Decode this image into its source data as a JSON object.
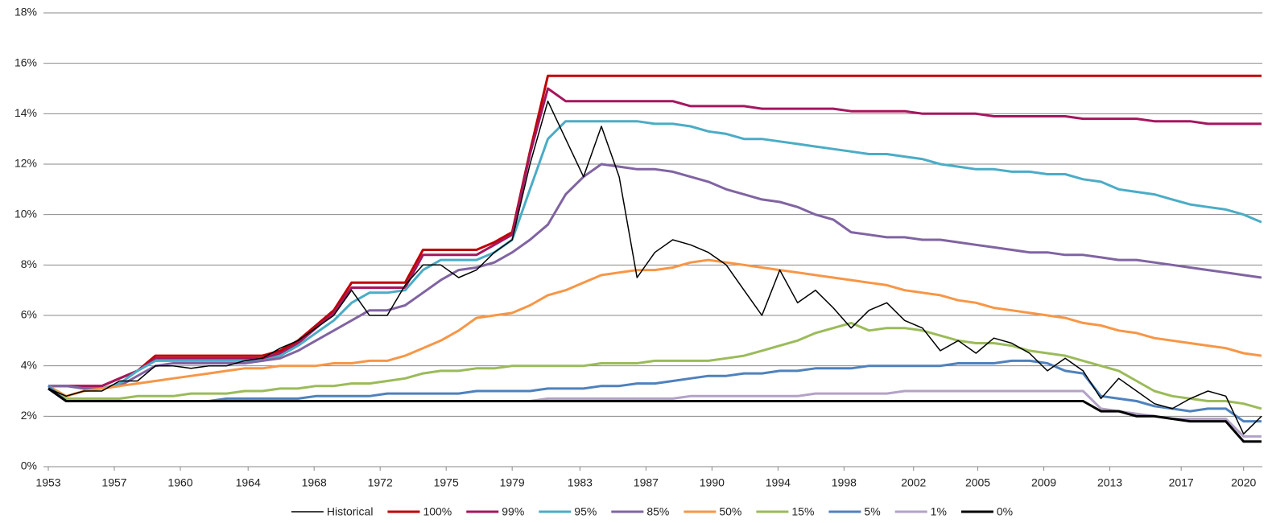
{
  "chart_data": {
    "type": "line",
    "x": [
      1953,
      1954,
      1955,
      1956,
      1957,
      1958,
      1959,
      1960,
      1961,
      1962,
      1963,
      1964,
      1965,
      1966,
      1967,
      1968,
      1969,
      1970,
      1971,
      1972,
      1973,
      1974,
      1975,
      1976,
      1977,
      1978,
      1979,
      1980,
      1981,
      1982,
      1983,
      1984,
      1985,
      1986,
      1987,
      1988,
      1989,
      1990,
      1991,
      1992,
      1993,
      1994,
      1995,
      1996,
      1997,
      1998,
      1999,
      2000,
      2001,
      2002,
      2003,
      2004,
      2005,
      2006,
      2007,
      2008,
      2009,
      2010,
      2011,
      2012,
      2013,
      2014,
      2015,
      2016,
      2017,
      2018,
      2019,
      2020,
      2021
    ],
    "xlim": [
      1953,
      2021.05
    ],
    "xticks": [
      {
        "value": 1953,
        "label": "1953"
      },
      {
        "value": 1956.7,
        "label": "1957"
      },
      {
        "value": 1960.4,
        "label": "1960"
      },
      {
        "value": 1964.2,
        "label": "1964"
      },
      {
        "value": 1967.9,
        "label": "1968"
      },
      {
        "value": 1971.6,
        "label": "1972"
      },
      {
        "value": 1975.3,
        "label": "1975"
      },
      {
        "value": 1979.0,
        "label": "1979"
      },
      {
        "value": 1982.8,
        "label": "1983"
      },
      {
        "value": 1986.5,
        "label": "1987"
      },
      {
        "value": 1990.2,
        "label": "1990"
      },
      {
        "value": 1993.9,
        "label": "1994"
      },
      {
        "value": 1997.6,
        "label": "1998"
      },
      {
        "value": 2001.5,
        "label": "2002"
      },
      {
        "value": 2005.1,
        "label": "2005"
      },
      {
        "value": 2008.8,
        "label": "2009"
      },
      {
        "value": 2012.5,
        "label": "2013"
      },
      {
        "value": 2016.5,
        "label": "2017"
      },
      {
        "value": 2020.0,
        "label": "2020"
      }
    ],
    "ylim": [
      0,
      18
    ],
    "yticks": [
      {
        "value": 0,
        "label": "0%"
      },
      {
        "value": 2,
        "label": "2%"
      },
      {
        "value": 4,
        "label": "4%"
      },
      {
        "value": 6,
        "label": "6%"
      },
      {
        "value": 8,
        "label": "8%"
      },
      {
        "value": 10,
        "label": "10%"
      },
      {
        "value": 12,
        "label": "12%"
      },
      {
        "value": 14,
        "label": "14%"
      },
      {
        "value": 16,
        "label": "16%"
      },
      {
        "value": 18,
        "label": "18%"
      }
    ],
    "grid": true,
    "legend": "bottom",
    "series": [
      {
        "name": "Historical",
        "color": "#000000",
        "line_width": 1.5,
        "values": [
          3.1,
          2.8,
          3.0,
          3.0,
          3.4,
          3.4,
          4.0,
          4.0,
          3.9,
          4.0,
          4.0,
          4.2,
          4.3,
          4.7,
          5.0,
          5.5,
          6.0,
          7.0,
          6.0,
          6.0,
          7.2,
          8.0,
          8.0,
          7.5,
          7.8,
          8.5,
          9.0,
          12.0,
          14.5,
          13.0,
          11.5,
          13.5,
          11.5,
          7.5,
          8.5,
          9.0,
          8.8,
          8.5,
          8.0,
          7.0,
          6.0,
          7.8,
          6.5,
          7.0,
          6.3,
          5.5,
          6.2,
          6.5,
          5.8,
          5.5,
          4.6,
          5.0,
          4.5,
          5.1,
          4.9,
          4.5,
          3.8,
          4.3,
          3.8,
          2.7,
          3.5,
          3.0,
          2.5,
          2.3,
          2.7,
          3.0,
          2.8,
          1.3,
          2.0
        ]
      },
      {
        "name": "100%",
        "color": "#c00000",
        "line_width": 3,
        "values": [
          3.2,
          3.2,
          3.2,
          3.2,
          3.5,
          3.8,
          4.4,
          4.4,
          4.4,
          4.4,
          4.4,
          4.4,
          4.4,
          4.6,
          5.0,
          5.6,
          6.2,
          7.3,
          7.3,
          7.3,
          7.3,
          8.6,
          8.6,
          8.6,
          8.6,
          8.9,
          9.3,
          12.5,
          15.5,
          15.5,
          15.5,
          15.5,
          15.5,
          15.5,
          15.5,
          15.5,
          15.5,
          15.5,
          15.5,
          15.5,
          15.5,
          15.5,
          15.5,
          15.5,
          15.5,
          15.5,
          15.5,
          15.5,
          15.5,
          15.5,
          15.5,
          15.5,
          15.5,
          15.5,
          15.5,
          15.5,
          15.5,
          15.5,
          15.5,
          15.5,
          15.5,
          15.5,
          15.5,
          15.5,
          15.5,
          15.5,
          15.5,
          15.5,
          15.5
        ]
      },
      {
        "name": "99%",
        "color": "#a5165f",
        "line_width": 3,
        "values": [
          3.2,
          3.2,
          3.2,
          3.2,
          3.5,
          3.8,
          4.3,
          4.3,
          4.3,
          4.3,
          4.3,
          4.3,
          4.3,
          4.5,
          4.9,
          5.5,
          6.1,
          7.1,
          7.1,
          7.1,
          7.1,
          8.4,
          8.4,
          8.4,
          8.4,
          8.8,
          9.2,
          12.4,
          15.0,
          14.5,
          14.5,
          14.5,
          14.5,
          14.5,
          14.5,
          14.5,
          14.3,
          14.3,
          14.3,
          14.3,
          14.2,
          14.2,
          14.2,
          14.2,
          14.2,
          14.1,
          14.1,
          14.1,
          14.1,
          14.0,
          14.0,
          14.0,
          14.0,
          13.9,
          13.9,
          13.9,
          13.9,
          13.9,
          13.8,
          13.8,
          13.8,
          13.8,
          13.7,
          13.7,
          13.7,
          13.6,
          13.6,
          13.6,
          13.6
        ]
      },
      {
        "name": "95%",
        "color": "#4bacc6",
        "line_width": 3,
        "values": [
          3.2,
          3.2,
          3.1,
          3.1,
          3.3,
          3.8,
          4.2,
          4.2,
          4.2,
          4.2,
          4.2,
          4.2,
          4.2,
          4.4,
          4.8,
          5.3,
          5.8,
          6.5,
          6.9,
          6.9,
          7.0,
          7.8,
          8.2,
          8.2,
          8.2,
          8.5,
          9.0,
          11.0,
          13.0,
          13.7,
          13.7,
          13.7,
          13.7,
          13.7,
          13.6,
          13.6,
          13.5,
          13.3,
          13.2,
          13.0,
          13.0,
          12.9,
          12.8,
          12.7,
          12.6,
          12.5,
          12.4,
          12.4,
          12.3,
          12.2,
          12.0,
          11.9,
          11.8,
          11.8,
          11.7,
          11.7,
          11.6,
          11.6,
          11.4,
          11.3,
          11.0,
          10.9,
          10.8,
          10.6,
          10.4,
          10.3,
          10.2,
          10.0,
          9.7
        ]
      },
      {
        "name": "85%",
        "color": "#8064a2",
        "line_width": 3,
        "values": [
          3.2,
          3.2,
          3.1,
          3.1,
          3.2,
          3.6,
          4.0,
          4.1,
          4.1,
          4.1,
          4.1,
          4.1,
          4.2,
          4.3,
          4.6,
          5.0,
          5.4,
          5.8,
          6.2,
          6.2,
          6.4,
          6.9,
          7.4,
          7.8,
          7.9,
          8.1,
          8.5,
          9.0,
          9.6,
          10.8,
          11.5,
          12.0,
          11.9,
          11.8,
          11.8,
          11.7,
          11.5,
          11.3,
          11.0,
          10.8,
          10.6,
          10.5,
          10.3,
          10.0,
          9.8,
          9.3,
          9.2,
          9.1,
          9.1,
          9.0,
          9.0,
          8.9,
          8.8,
          8.7,
          8.6,
          8.5,
          8.5,
          8.4,
          8.4,
          8.3,
          8.2,
          8.2,
          8.1,
          8.0,
          7.9,
          7.8,
          7.7,
          7.6,
          7.5
        ]
      },
      {
        "name": "50%",
        "color": "#f79646",
        "line_width": 3,
        "values": [
          3.2,
          2.8,
          3.0,
          3.1,
          3.2,
          3.3,
          3.4,
          3.5,
          3.6,
          3.7,
          3.8,
          3.9,
          3.9,
          4.0,
          4.0,
          4.0,
          4.1,
          4.1,
          4.2,
          4.2,
          4.4,
          4.7,
          5.0,
          5.4,
          5.9,
          6.0,
          6.1,
          6.4,
          6.8,
          7.0,
          7.3,
          7.6,
          7.7,
          7.8,
          7.8,
          7.9,
          8.1,
          8.2,
          8.1,
          8.0,
          7.9,
          7.8,
          7.7,
          7.6,
          7.5,
          7.4,
          7.3,
          7.2,
          7.0,
          6.9,
          6.8,
          6.6,
          6.5,
          6.3,
          6.2,
          6.1,
          6.0,
          5.9,
          5.7,
          5.6,
          5.4,
          5.3,
          5.1,
          5.0,
          4.9,
          4.8,
          4.7,
          4.5,
          4.4
        ]
      },
      {
        "name": "15%",
        "color": "#9bbb59",
        "line_width": 3,
        "values": [
          3.2,
          2.7,
          2.7,
          2.7,
          2.7,
          2.8,
          2.8,
          2.8,
          2.9,
          2.9,
          2.9,
          3.0,
          3.0,
          3.1,
          3.1,
          3.2,
          3.2,
          3.3,
          3.3,
          3.4,
          3.5,
          3.7,
          3.8,
          3.8,
          3.9,
          3.9,
          4.0,
          4.0,
          4.0,
          4.0,
          4.0,
          4.1,
          4.1,
          4.1,
          4.2,
          4.2,
          4.2,
          4.2,
          4.3,
          4.4,
          4.6,
          4.8,
          5.0,
          5.3,
          5.5,
          5.7,
          5.4,
          5.5,
          5.5,
          5.4,
          5.2,
          5.0,
          4.9,
          4.9,
          4.8,
          4.6,
          4.5,
          4.4,
          4.2,
          4.0,
          3.8,
          3.4,
          3.0,
          2.8,
          2.7,
          2.6,
          2.6,
          2.5,
          2.3
        ]
      },
      {
        "name": "5%",
        "color": "#4f81bd",
        "line_width": 3,
        "values": [
          3.2,
          2.6,
          2.6,
          2.6,
          2.6,
          2.6,
          2.6,
          2.6,
          2.6,
          2.6,
          2.7,
          2.7,
          2.7,
          2.7,
          2.7,
          2.8,
          2.8,
          2.8,
          2.8,
          2.9,
          2.9,
          2.9,
          2.9,
          2.9,
          3.0,
          3.0,
          3.0,
          3.0,
          3.1,
          3.1,
          3.1,
          3.2,
          3.2,
          3.3,
          3.3,
          3.4,
          3.5,
          3.6,
          3.6,
          3.7,
          3.7,
          3.8,
          3.8,
          3.9,
          3.9,
          3.9,
          4.0,
          4.0,
          4.0,
          4.0,
          4.0,
          4.1,
          4.1,
          4.1,
          4.2,
          4.2,
          4.1,
          3.8,
          3.7,
          2.8,
          2.7,
          2.6,
          2.4,
          2.3,
          2.2,
          2.3,
          2.3,
          1.8,
          1.8
        ]
      },
      {
        "name": "1%",
        "color": "#b3a2c7",
        "line_width": 3,
        "values": [
          3.1,
          2.6,
          2.6,
          2.6,
          2.6,
          2.6,
          2.6,
          2.6,
          2.6,
          2.6,
          2.6,
          2.6,
          2.6,
          2.6,
          2.6,
          2.6,
          2.6,
          2.6,
          2.6,
          2.6,
          2.6,
          2.6,
          2.6,
          2.6,
          2.6,
          2.6,
          2.6,
          2.6,
          2.7,
          2.7,
          2.7,
          2.7,
          2.7,
          2.7,
          2.7,
          2.7,
          2.8,
          2.8,
          2.8,
          2.8,
          2.8,
          2.8,
          2.8,
          2.9,
          2.9,
          2.9,
          2.9,
          2.9,
          3.0,
          3.0,
          3.0,
          3.0,
          3.0,
          3.0,
          3.0,
          3.0,
          3.0,
          3.0,
          3.0,
          2.3,
          2.2,
          2.1,
          2.0,
          1.9,
          1.9,
          1.9,
          1.9,
          1.2,
          1.2
        ]
      },
      {
        "name": "0%",
        "color": "#000000",
        "line_width": 3,
        "values": [
          3.1,
          2.6,
          2.6,
          2.6,
          2.6,
          2.6,
          2.6,
          2.6,
          2.6,
          2.6,
          2.6,
          2.6,
          2.6,
          2.6,
          2.6,
          2.6,
          2.6,
          2.6,
          2.6,
          2.6,
          2.6,
          2.6,
          2.6,
          2.6,
          2.6,
          2.6,
          2.6,
          2.6,
          2.6,
          2.6,
          2.6,
          2.6,
          2.6,
          2.6,
          2.6,
          2.6,
          2.6,
          2.6,
          2.6,
          2.6,
          2.6,
          2.6,
          2.6,
          2.6,
          2.6,
          2.6,
          2.6,
          2.6,
          2.6,
          2.6,
          2.6,
          2.6,
          2.6,
          2.6,
          2.6,
          2.6,
          2.6,
          2.6,
          2.6,
          2.2,
          2.2,
          2.0,
          2.0,
          1.9,
          1.8,
          1.8,
          1.8,
          1.0,
          1.0
        ]
      }
    ]
  }
}
